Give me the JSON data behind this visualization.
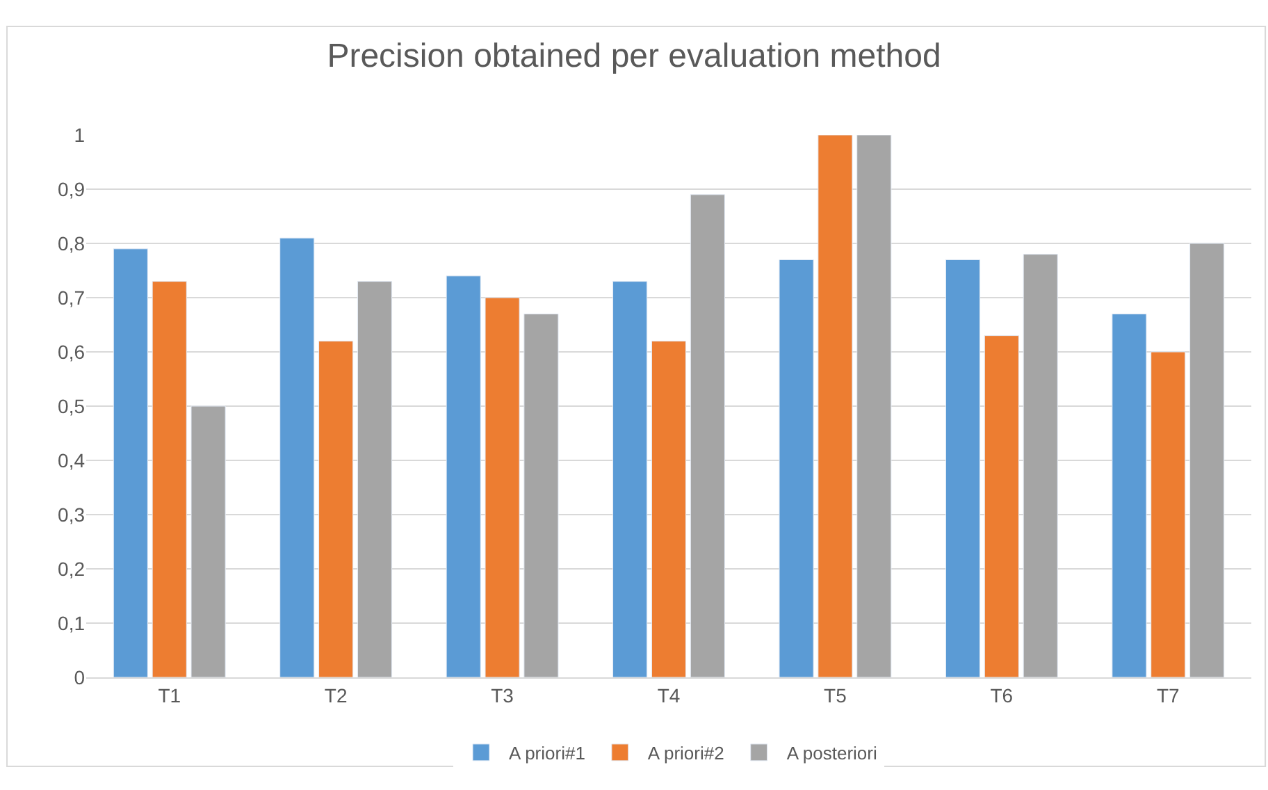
{
  "chart_data": {
    "type": "bar",
    "title": "Precision obtained per evaluation method",
    "categories": [
      "T1",
      "T2",
      "T3",
      "T4",
      "T5",
      "T6",
      "T7"
    ],
    "series": [
      {
        "name": "A priori#1",
        "color": "#5b9bd5",
        "values": [
          0.79,
          0.81,
          0.74,
          0.73,
          0.77,
          0.77,
          0.67
        ]
      },
      {
        "name": "A priori#2",
        "color": "#ed7d31",
        "values": [
          0.73,
          0.62,
          0.7,
          0.62,
          1.0,
          0.63,
          0.6
        ]
      },
      {
        "name": "A posteriori",
        "color": "#a5a5a5",
        "values": [
          0.5,
          0.73,
          0.67,
          0.89,
          1.0,
          0.78,
          0.8
        ]
      }
    ],
    "ylim": [
      0,
      1
    ],
    "yticks": [
      0,
      {
        "value": 0.1,
        "label": "0,1"
      },
      {
        "value": 0.2,
        "label": "0,2"
      },
      {
        "value": 0.3,
        "label": "0,3"
      },
      {
        "value": 0.4,
        "label": "0,4"
      },
      {
        "value": 0.5,
        "label": "0,5"
      },
      {
        "value": 0.6,
        "label": "0,6"
      },
      {
        "value": 0.7,
        "label": "0,7"
      },
      {
        "value": 0.8,
        "label": "0,8"
      },
      {
        "value": 0.9,
        "label": "0,9"
      },
      1
    ],
    "grid": "y",
    "legend": "bottom"
  }
}
